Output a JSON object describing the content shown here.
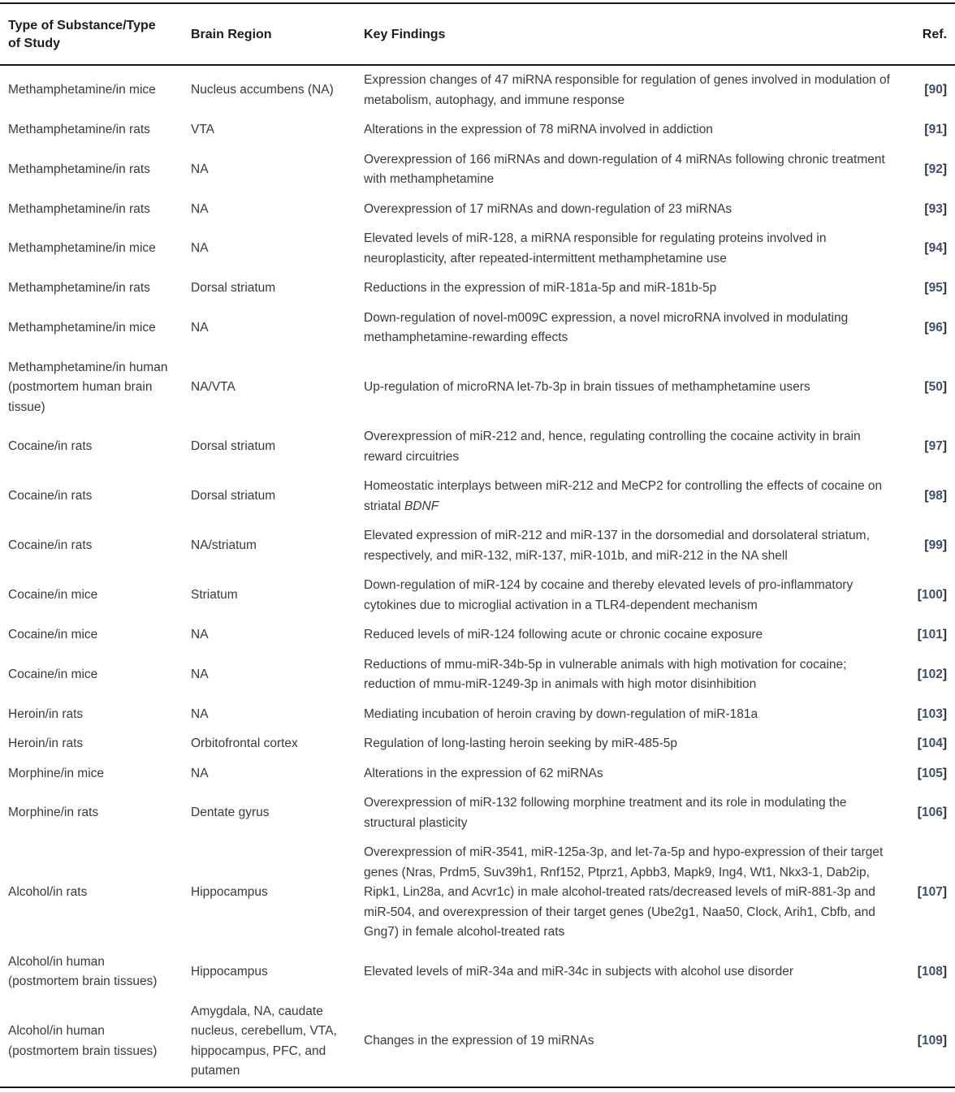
{
  "colors": {
    "ref_link": "#3e5173",
    "body_text": "#3a3a3a",
    "header_text": "#1c1c1c",
    "rule": "#161616"
  },
  "table": {
    "ref_brackets": {
      "open": "[",
      "close": "]"
    },
    "headers": [
      {
        "label": "Type of Substance/Type of Study"
      },
      {
        "label": "Brain Region"
      },
      {
        "label": "Key Findings"
      },
      {
        "label": "Ref."
      }
    ],
    "rows": [
      {
        "substance": "Methamphetamine/in mice",
        "region": "Nucleus accumbens (NA)",
        "findings": [
          {
            "text": "Expression changes of 47 miRNA responsible for regulation of genes involved in modulation of metabolism, autophagy, and immune response"
          }
        ],
        "ref": "90"
      },
      {
        "substance": "Methamphetamine/in rats",
        "region": "VTA",
        "findings": [
          {
            "text": "Alterations in the expression of 78 miRNA involved in addiction"
          }
        ],
        "ref": "91"
      },
      {
        "substance": "Methamphetamine/in rats",
        "region": "NA",
        "findings": [
          {
            "text": "Overexpression of 166 miRNAs and down-regulation of 4 miRNAs following chronic treatment with methamphetamine"
          }
        ],
        "ref": "92"
      },
      {
        "substance": "Methamphetamine/in rats",
        "region": "NA",
        "findings": [
          {
            "text": "Overexpression of 17 miRNAs and down-regulation of 23 miRNAs"
          }
        ],
        "ref": "93"
      },
      {
        "substance": "Methamphetamine/in mice",
        "region": "NA",
        "findings": [
          {
            "text": "Elevated levels of miR-128, a miRNA responsible for regulating proteins involved in neuroplasticity, after repeated-intermittent methamphetamine use"
          }
        ],
        "ref": "94"
      },
      {
        "substance": "Methamphetamine/in rats",
        "region": "Dorsal striatum",
        "findings": [
          {
            "text": "Reductions in the expression of miR-181a-5p and miR-181b-5p"
          }
        ],
        "ref": "95"
      },
      {
        "substance": "Methamphetamine/in mice",
        "region": "NA",
        "findings": [
          {
            "text": "Down-regulation of novel-m009C expression, a novel microRNA involved in modulating methamphetamine-rewarding effects"
          }
        ],
        "ref": "96"
      },
      {
        "substance": "Methamphetamine/in human (postmortem human brain tissue)",
        "region": "NA/VTA",
        "findings": [
          {
            "text": "Up-regulation of microRNA let-7b-3p in brain tissues of methamphetamine users"
          }
        ],
        "ref": "50"
      },
      {
        "substance": "Cocaine/in rats",
        "region": "Dorsal striatum",
        "findings": [
          {
            "text": "Overexpression of miR-212 and, hence, regulating controlling the cocaine activity in brain reward circuitries"
          }
        ],
        "ref": "97"
      },
      {
        "substance": "Cocaine/in rats",
        "region": "Dorsal striatum",
        "findings": [
          {
            "text": "Homeostatic interplays between miR-212 and MeCP2 for controlling the effects of cocaine on striatal "
          },
          {
            "text": "BDNF",
            "italic": true
          }
        ],
        "ref": "98"
      },
      {
        "substance": "Cocaine/in rats",
        "region": "NA/striatum",
        "findings": [
          {
            "text": "Elevated expression of miR-212 and miR-137 in the dorsomedial and dorsolateral striatum, respectively, and miR-132, miR-137, miR-101b, and miR-212 in the NA shell"
          }
        ],
        "ref": "99"
      },
      {
        "substance": "Cocaine/in mice",
        "region": "Striatum",
        "findings": [
          {
            "text": "Down-regulation of miR-124 by cocaine and thereby elevated levels of pro-inflammatory cytokines due to microglial activation in a TLR4-dependent mechanism"
          }
        ],
        "ref": "100"
      },
      {
        "substance": "Cocaine/in mice",
        "region": "NA",
        "findings": [
          {
            "text": "Reduced levels of miR-124 following acute or chronic cocaine exposure"
          }
        ],
        "ref": "101"
      },
      {
        "substance": "Cocaine/in mice",
        "region": "NA",
        "findings": [
          {
            "text": "Reductions of mmu-miR-34b-5p in vulnerable animals with high motivation for cocaine; reduction of mmu-miR-1249-3p in animals with high motor disinhibition"
          }
        ],
        "ref": "102"
      },
      {
        "substance": "Heroin/in rats",
        "region": "NA",
        "findings": [
          {
            "text": "Mediating incubation of heroin craving by down-regulation of miR-181a"
          }
        ],
        "ref": "103"
      },
      {
        "substance": "Heroin/in rats",
        "region": "Orbitofrontal cortex",
        "findings": [
          {
            "text": "Regulation of long-lasting heroin seeking by miR-485-5p"
          }
        ],
        "ref": "104"
      },
      {
        "substance": "Morphine/in mice",
        "region": "NA",
        "findings": [
          {
            "text": "Alterations in the expression of 62 miRNAs"
          }
        ],
        "ref": "105"
      },
      {
        "substance": "Morphine/in rats",
        "region": "Dentate gyrus",
        "findings": [
          {
            "text": "Overexpression of miR-132 following morphine treatment and its role in modulating the structural plasticity"
          }
        ],
        "ref": "106"
      },
      {
        "substance": "Alcohol/in rats",
        "region": "Hippocampus",
        "findings": [
          {
            "text": "Overexpression of miR-3541, miR-125a-3p, and let-7a-5p and hypo-expression of their target genes (Nras, Prdm5, Suv39h1, Rnf152, Ptprz1, Apbb3, Mapk9, Ing4, Wt1, Nkx3-1, Dab2ip, Ripk1, Lin28a, and Acvr1c) in male alcohol-treated rats/decreased levels of miR-881-3p and miR-504, and overexpression of their target genes (Ube2g1, Naa50, Clock, Arih1, Cbfb, and Gng7) in female alcohol-treated rats"
          }
        ],
        "ref": "107"
      },
      {
        "substance": "Alcohol/in human (postmortem brain tissues)",
        "region": "Hippocampus",
        "findings": [
          {
            "text": "Elevated levels of miR-34a and miR-34c in subjects with alcohol use disorder"
          }
        ],
        "ref": "108"
      },
      {
        "substance": "Alcohol/in human (postmortem brain tissues)",
        "region": "Amygdala, NA, caudate nucleus, cerebellum, VTA, hippocampus, PFC, and putamen",
        "findings": [
          {
            "text": "Changes in the expression of 19 miRNAs"
          }
        ],
        "ref": "109"
      }
    ]
  }
}
